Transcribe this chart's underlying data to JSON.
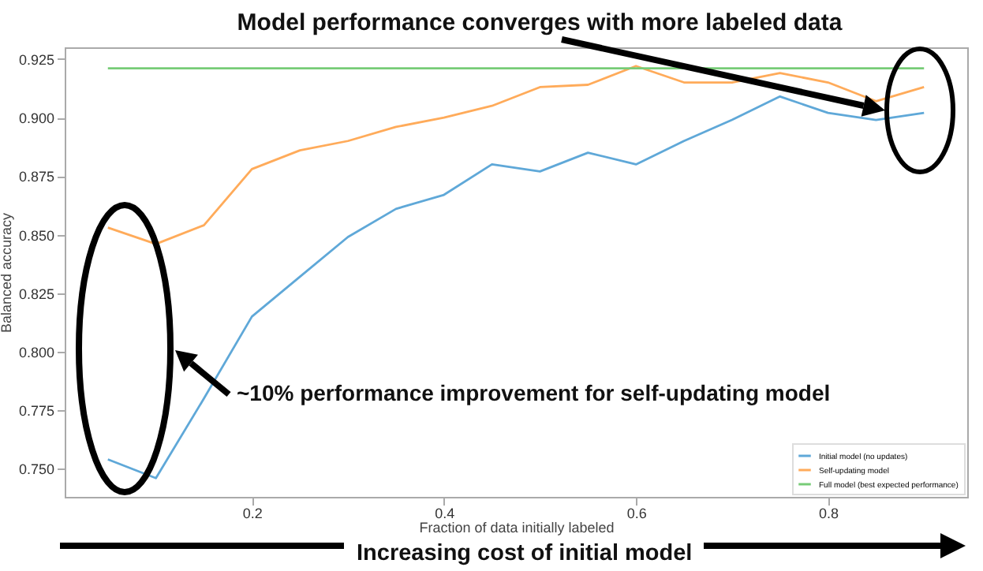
{
  "chart_data": {
    "type": "line",
    "title": "Model performance converges with more labeled data",
    "xlabel": "Fraction of data initially labeled",
    "ylabel": "Balanced accuracy",
    "x": [
      0.05,
      0.1,
      0.15,
      0.2,
      0.25,
      0.3,
      0.35,
      0.4,
      0.45,
      0.5,
      0.55,
      0.6,
      0.65,
      0.7,
      0.75,
      0.8,
      0.85,
      0.9
    ],
    "series": [
      {
        "name": "Initial model (no updates)",
        "color": "#5fa8d8",
        "values": [
          0.754,
          0.746,
          0.78,
          0.815,
          0.832,
          0.849,
          0.861,
          0.867,
          0.88,
          0.877,
          0.885,
          0.88,
          0.89,
          0.899,
          0.909,
          0.902,
          0.899,
          0.902
        ]
      },
      {
        "name": "Self-updating model",
        "color": "#ffab5a",
        "values": [
          0.853,
          0.846,
          0.854,
          0.878,
          0.886,
          0.89,
          0.896,
          0.9,
          0.905,
          0.913,
          0.914,
          0.922,
          0.915,
          0.915,
          0.919,
          0.915,
          0.907,
          0.913
        ]
      },
      {
        "name": "Full model (best expected performance)",
        "color": "#77cc77",
        "values": [
          0.921,
          0.921,
          0.921,
          0.921,
          0.921,
          0.921,
          0.921,
          0.921,
          0.921,
          0.921,
          0.921,
          0.921,
          0.921,
          0.921,
          0.921,
          0.921,
          0.921,
          0.921
        ]
      }
    ],
    "xlim": [
      0.005,
      0.945
    ],
    "xticks": [
      0.2,
      0.4,
      0.6,
      0.8
    ],
    "ylim": [
      0.738,
      0.93
    ],
    "yticks": [
      {
        "value": 0.75,
        "label": "0.750"
      },
      0.775,
      {
        "value": 0.8,
        "label": "0.800"
      },
      0.825,
      {
        "value": 0.85,
        "label": "0.850"
      },
      0.875,
      {
        "value": 0.9,
        "label": "0.900"
      },
      0.925
    ],
    "grid": false,
    "legend": "bottom right",
    "annotations": [
      "~10% performance improvement for self-updating model",
      "Increasing cost of initial model"
    ]
  }
}
